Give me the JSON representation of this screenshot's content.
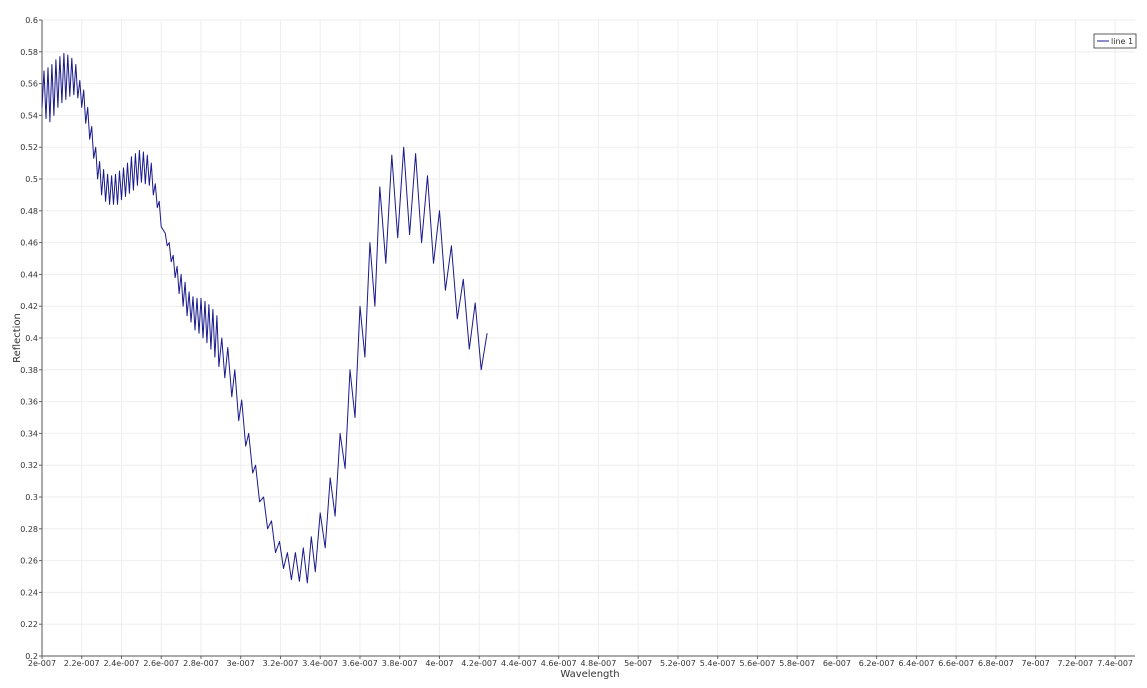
{
  "chart_data": {
    "type": "line",
    "title": "",
    "xlabel": "Wavelength",
    "ylabel": "Reflection",
    "xlim": [
      2e-07,
      7.5e-07
    ],
    "ylim": [
      0.2,
      0.6
    ],
    "grid": true,
    "legend_position": "top-right",
    "x_ticks": [
      {
        "value": 2e-07,
        "label": "2e-007"
      },
      {
        "value": 2.2e-07,
        "label": "2.2e-007"
      },
      {
        "value": 2.4e-07,
        "label": "2.4e-007"
      },
      {
        "value": 2.6e-07,
        "label": "2.6e-007"
      },
      {
        "value": 2.8e-07,
        "label": "2.8e-007"
      },
      {
        "value": 3e-07,
        "label": "3e-007"
      },
      {
        "value": 3.2e-07,
        "label": "3.2e-007"
      },
      {
        "value": 3.4e-07,
        "label": "3.4e-007"
      },
      {
        "value": 3.6e-07,
        "label": "3.6e-007"
      },
      {
        "value": 3.8e-07,
        "label": "3.8e-007"
      },
      {
        "value": 4e-07,
        "label": "4e-007"
      },
      {
        "value": 4.2e-07,
        "label": "4.2e-007"
      },
      {
        "value": 4.4e-07,
        "label": "4.4e-007"
      },
      {
        "value": 4.6e-07,
        "label": "4.6e-007"
      },
      {
        "value": 4.8e-07,
        "label": "4.8e-007"
      },
      {
        "value": 5e-07,
        "label": "5e-007"
      },
      {
        "value": 5.2e-07,
        "label": "5.2e-007"
      },
      {
        "value": 5.4e-07,
        "label": "5.4e-007"
      },
      {
        "value": 5.6e-07,
        "label": "5.6e-007"
      },
      {
        "value": 5.8e-07,
        "label": "5.8e-007"
      },
      {
        "value": 6e-07,
        "label": "6e-007"
      },
      {
        "value": 6.2e-07,
        "label": "6.2e-007"
      },
      {
        "value": 6.4e-07,
        "label": "6.4e-007"
      },
      {
        "value": 6.6e-07,
        "label": "6.6e-007"
      },
      {
        "value": 6.8e-07,
        "label": "6.8e-007"
      },
      {
        "value": 7e-07,
        "label": "7e-007"
      },
      {
        "value": 7.2e-07,
        "label": "7.2e-007"
      },
      {
        "value": 7.4e-07,
        "label": "7.4e-007"
      }
    ],
    "y_ticks": [
      {
        "value": 0.2,
        "label": "0.2"
      },
      {
        "value": 0.22,
        "label": "0.22"
      },
      {
        "value": 0.24,
        "label": "0.24"
      },
      {
        "value": 0.26,
        "label": "0.26"
      },
      {
        "value": 0.28,
        "label": "0.28"
      },
      {
        "value": 0.3,
        "label": "0.3"
      },
      {
        "value": 0.32,
        "label": "0.32"
      },
      {
        "value": 0.34,
        "label": "0.34"
      },
      {
        "value": 0.36,
        "label": "0.36"
      },
      {
        "value": 0.38,
        "label": "0.38"
      },
      {
        "value": 0.4,
        "label": "0.4"
      },
      {
        "value": 0.42,
        "label": "0.42"
      },
      {
        "value": 0.44,
        "label": "0.44"
      },
      {
        "value": 0.46,
        "label": "0.46"
      },
      {
        "value": 0.48,
        "label": "0.48"
      },
      {
        "value": 0.5,
        "label": "0.5"
      },
      {
        "value": 0.52,
        "label": "0.52"
      },
      {
        "value": 0.54,
        "label": "0.54"
      },
      {
        "value": 0.56,
        "label": "0.56"
      },
      {
        "value": 0.58,
        "label": "0.58"
      },
      {
        "value": 0.6,
        "label": "0.6"
      }
    ],
    "series": [
      {
        "name": "line 1",
        "color": "#1a1a8c",
        "points": [
          [
            2e-07,
            0.545
          ],
          [
            2.01e-07,
            0.568
          ],
          [
            2.02e-07,
            0.538
          ],
          [
            2.03e-07,
            0.57
          ],
          [
            2.04e-07,
            0.536
          ],
          [
            2.05e-07,
            0.572
          ],
          [
            2.06e-07,
            0.54
          ],
          [
            2.07e-07,
            0.575
          ],
          [
            2.08e-07,
            0.545
          ],
          [
            2.09e-07,
            0.577
          ],
          [
            2.1e-07,
            0.548
          ],
          [
            2.11e-07,
            0.579
          ],
          [
            2.12e-07,
            0.55
          ],
          [
            2.13e-07,
            0.578
          ],
          [
            2.14e-07,
            0.552
          ],
          [
            2.15e-07,
            0.576
          ],
          [
            2.16e-07,
            0.553
          ],
          [
            2.17e-07,
            0.572
          ],
          [
            2.18e-07,
            0.551
          ],
          [
            2.19e-07,
            0.562
          ],
          [
            2.2e-07,
            0.545
          ],
          [
            2.21e-07,
            0.556
          ],
          [
            2.22e-07,
            0.535
          ],
          [
            2.23e-07,
            0.545
          ],
          [
            2.24e-07,
            0.525
          ],
          [
            2.25e-07,
            0.533
          ],
          [
            2.26e-07,
            0.513
          ],
          [
            2.27e-07,
            0.52
          ],
          [
            2.28e-07,
            0.5
          ],
          [
            2.29e-07,
            0.511
          ],
          [
            2.3e-07,
            0.49
          ],
          [
            2.31e-07,
            0.506
          ],
          [
            2.32e-07,
            0.486
          ],
          [
            2.33e-07,
            0.503
          ],
          [
            2.34e-07,
            0.484
          ],
          [
            2.35e-07,
            0.502
          ],
          [
            2.36e-07,
            0.484
          ],
          [
            2.37e-07,
            0.503
          ],
          [
            2.38e-07,
            0.484
          ],
          [
            2.39e-07,
            0.505
          ],
          [
            2.4e-07,
            0.487
          ],
          [
            2.41e-07,
            0.507
          ],
          [
            2.42e-07,
            0.489
          ],
          [
            2.43e-07,
            0.51
          ],
          [
            2.44e-07,
            0.491
          ],
          [
            2.45e-07,
            0.514
          ],
          [
            2.46e-07,
            0.493
          ],
          [
            2.47e-07,
            0.516
          ],
          [
            2.48e-07,
            0.496
          ],
          [
            2.49e-07,
            0.518
          ],
          [
            2.5e-07,
            0.498
          ],
          [
            2.51e-07,
            0.517
          ],
          [
            2.52e-07,
            0.497
          ],
          [
            2.53e-07,
            0.515
          ],
          [
            2.54e-07,
            0.496
          ],
          [
            2.55e-07,
            0.51
          ],
          [
            2.56e-07,
            0.49
          ],
          [
            2.57e-07,
            0.497
          ],
          [
            2.58e-07,
            0.482
          ],
          [
            2.59e-07,
            0.486
          ],
          [
            2.6e-07,
            0.47
          ],
          [
            2.62e-07,
            0.466
          ],
          [
            2.63e-07,
            0.458
          ],
          [
            2.64e-07,
            0.46
          ],
          [
            2.65e-07,
            0.448
          ],
          [
            2.66e-07,
            0.452
          ],
          [
            2.67e-07,
            0.438
          ],
          [
            2.68e-07,
            0.445
          ],
          [
            2.69e-07,
            0.428
          ],
          [
            2.7e-07,
            0.44
          ],
          [
            2.71e-07,
            0.42
          ],
          [
            2.72e-07,
            0.435
          ],
          [
            2.73e-07,
            0.414
          ],
          [
            2.74e-07,
            0.429
          ],
          [
            2.75e-07,
            0.41
          ],
          [
            2.76e-07,
            0.426
          ],
          [
            2.77e-07,
            0.405
          ],
          [
            2.78e-07,
            0.425
          ],
          [
            2.79e-07,
            0.403
          ],
          [
            2.8e-07,
            0.425
          ],
          [
            2.81e-07,
            0.4
          ],
          [
            2.82e-07,
            0.423
          ],
          [
            2.83e-07,
            0.397
          ],
          [
            2.84e-07,
            0.421
          ],
          [
            2.85e-07,
            0.393
          ],
          [
            2.86e-07,
            0.418
          ],
          [
            2.87e-07,
            0.388
          ],
          [
            2.88e-07,
            0.414
          ],
          [
            2.89e-07,
            0.382
          ],
          [
            2.905e-07,
            0.4
          ],
          [
            2.92e-07,
            0.375
          ],
          [
            2.935e-07,
            0.394
          ],
          [
            2.955e-07,
            0.363
          ],
          [
            2.97e-07,
            0.38
          ],
          [
            2.99e-07,
            0.348
          ],
          [
            3.005e-07,
            0.361
          ],
          [
            3.025e-07,
            0.332
          ],
          [
            3.04e-07,
            0.34
          ],
          [
            3.06e-07,
            0.315
          ],
          [
            3.075e-07,
            0.32
          ],
          [
            3.095e-07,
            0.297
          ],
          [
            3.115e-07,
            0.3
          ],
          [
            3.135e-07,
            0.28
          ],
          [
            3.155e-07,
            0.285
          ],
          [
            3.175e-07,
            0.265
          ],
          [
            3.195e-07,
            0.272
          ],
          [
            3.215e-07,
            0.255
          ],
          [
            3.235e-07,
            0.265
          ],
          [
            3.255e-07,
            0.248
          ],
          [
            3.275e-07,
            0.265
          ],
          [
            3.295e-07,
            0.247
          ],
          [
            3.315e-07,
            0.268
          ],
          [
            3.335e-07,
            0.246
          ],
          [
            3.355e-07,
            0.275
          ],
          [
            3.375e-07,
            0.253
          ],
          [
            3.4e-07,
            0.29
          ],
          [
            3.425e-07,
            0.268
          ],
          [
            3.45e-07,
            0.312
          ],
          [
            3.475e-07,
            0.288
          ],
          [
            3.5e-07,
            0.34
          ],
          [
            3.525e-07,
            0.318
          ],
          [
            3.55e-07,
            0.38
          ],
          [
            3.575e-07,
            0.35
          ],
          [
            3.6e-07,
            0.42
          ],
          [
            3.625e-07,
            0.388
          ],
          [
            3.65e-07,
            0.46
          ],
          [
            3.675e-07,
            0.42
          ],
          [
            3.7e-07,
            0.495
          ],
          [
            3.73e-07,
            0.447
          ],
          [
            3.76e-07,
            0.515
          ],
          [
            3.79e-07,
            0.463
          ],
          [
            3.82e-07,
            0.52
          ],
          [
            3.85e-07,
            0.465
          ],
          [
            3.88e-07,
            0.516
          ],
          [
            3.91e-07,
            0.46
          ],
          [
            3.94e-07,
            0.502
          ],
          [
            3.97e-07,
            0.447
          ],
          [
            4e-07,
            0.48
          ],
          [
            4.03e-07,
            0.43
          ],
          [
            4.06e-07,
            0.458
          ],
          [
            4.09e-07,
            0.412
          ],
          [
            4.12e-07,
            0.437
          ],
          [
            4.15e-07,
            0.393
          ],
          [
            4.18e-07,
            0.422
          ],
          [
            4.21e-07,
            0.38
          ],
          [
            4.24e-07,
            0.403
          ]
        ]
      }
    ]
  }
}
